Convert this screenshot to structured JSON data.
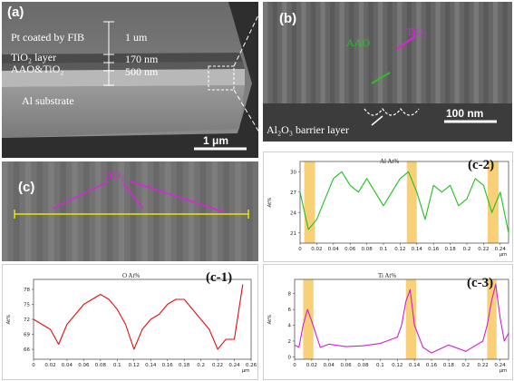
{
  "panel_a": {
    "label": "(a)",
    "layer_pt": "Pt coated by FIB",
    "layer_tio2": "TiO₂ layer",
    "layer_aao": "AAO&TiO₂",
    "layer_al": "Al substrate",
    "dim_pt": "1 um",
    "dim_tio2": "170 nm",
    "dim_aao": "500 nm",
    "scale": "1 μm"
  },
  "panel_b": {
    "label": "(b)",
    "aao": "AAO",
    "tio2": "TiO₂",
    "barrier": "Al₂O₃ barrier layer",
    "scale": "100 nm"
  },
  "panel_c": {
    "label": "(c)",
    "tio2": "TiO₂"
  },
  "chart_data": [
    {
      "id": "c-1",
      "type": "line",
      "label": "(c-1)",
      "title": "O At%",
      "ylabel": "At%",
      "xlabel": "μm",
      "color": "#e01010",
      "xlim": [
        0,
        0.26
      ],
      "ylim": [
        64,
        80
      ],
      "xticks": [
        "0",
        "0.02",
        "0.04",
        "0.06",
        "0.08",
        "0.1",
        "0.12",
        "0.14",
        "0.16",
        "0.18",
        "0.2",
        "0.22",
        "0.24",
        "0.26"
      ],
      "yticks": [
        66,
        69,
        72,
        75,
        78
      ],
      "x": [
        0,
        0.01,
        0.02,
        0.03,
        0.04,
        0.05,
        0.06,
        0.07,
        0.08,
        0.09,
        0.1,
        0.11,
        0.12,
        0.13,
        0.14,
        0.15,
        0.16,
        0.17,
        0.18,
        0.19,
        0.2,
        0.21,
        0.22,
        0.23,
        0.24,
        0.25
      ],
      "y": [
        72,
        71,
        70,
        67,
        71,
        73,
        75,
        76,
        77,
        76,
        74,
        71,
        66,
        70,
        72,
        73,
        75,
        76,
        76,
        74,
        72,
        70,
        66,
        68,
        68,
        79
      ],
      "highlights": []
    },
    {
      "id": "c-2",
      "type": "line",
      "label": "(c-2)",
      "title": "Al At%",
      "ylabel": "At%",
      "xlabel": "μm",
      "color": "#20c020",
      "xlim": [
        0,
        0.25
      ],
      "ylim": [
        19.5,
        31.5
      ],
      "xticks": [
        "0",
        "0.02",
        "0.04",
        "0.06",
        "0.08",
        "0.1",
        "0.12",
        "0.14",
        "0.16",
        "0.18",
        "0.2",
        "0.22",
        "0.24"
      ],
      "yticks": [
        21,
        24,
        27,
        30
      ],
      "x": [
        0,
        0.01,
        0.02,
        0.03,
        0.04,
        0.05,
        0.06,
        0.07,
        0.08,
        0.09,
        0.1,
        0.11,
        0.12,
        0.13,
        0.14,
        0.15,
        0.16,
        0.17,
        0.18,
        0.19,
        0.2,
        0.21,
        0.22,
        0.23,
        0.24,
        0.25
      ],
      "y": [
        27,
        21.5,
        23,
        26,
        29,
        30,
        28,
        27,
        29,
        27,
        25,
        27,
        29,
        30,
        27,
        23,
        28,
        27,
        28,
        25,
        26,
        29,
        28,
        24,
        27,
        21
      ],
      "highlights": [
        [
          0.005,
          0.018
        ],
        [
          0.128,
          0.14
        ],
        [
          0.225,
          0.238
        ]
      ]
    },
    {
      "id": "c-3",
      "type": "line",
      "label": "(c-3)",
      "title": "Ti At%",
      "ylabel": "At%",
      "xlabel": "μm",
      "color": "#d020d0",
      "xlim": [
        0,
        0.25
      ],
      "ylim": [
        -0.3,
        9.8
      ],
      "xticks": [
        "0",
        "0.02",
        "0.04",
        "0.06",
        "0.08",
        "0.1",
        "0.12",
        "0.14",
        "0.16",
        "0.18",
        "0.2",
        "0.22",
        "0.24"
      ],
      "yticks": [
        0,
        2,
        4,
        6,
        8
      ],
      "x": [
        0,
        0.005,
        0.01,
        0.015,
        0.02,
        0.03,
        0.04,
        0.06,
        0.08,
        0.1,
        0.12,
        0.125,
        0.13,
        0.135,
        0.14,
        0.15,
        0.16,
        0.18,
        0.2,
        0.22,
        0.225,
        0.23,
        0.235,
        0.24,
        0.245,
        0.25
      ],
      "y": [
        1.5,
        1.2,
        4,
        6,
        4.5,
        1.2,
        1.6,
        1.3,
        1.4,
        1.7,
        2.5,
        4,
        7,
        8.5,
        4,
        1.2,
        0.5,
        1.5,
        0.7,
        2,
        4,
        7,
        9.2,
        5,
        2,
        3
      ],
      "highlights": [
        [
          0.01,
          0.022
        ],
        [
          0.13,
          0.142
        ],
        [
          0.225,
          0.236
        ]
      ]
    }
  ]
}
